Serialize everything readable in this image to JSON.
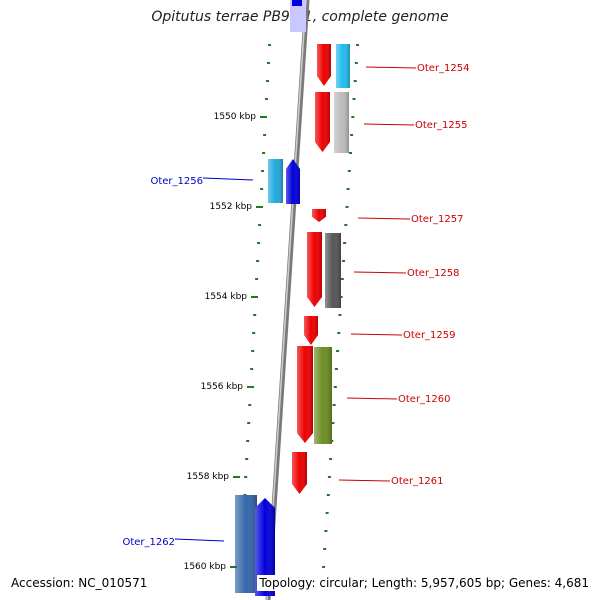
{
  "title": "Opitutus terrae PB90-1, complete genome",
  "footer": {
    "accession": "Accession: NC_010571",
    "topology": "Topology: circular; Length: 5,957,605 bp; Genes: 4,681"
  },
  "colors": {
    "backbone": "#7a7a7a",
    "tick": "#1f7a1f",
    "forward_label": "#cc0000",
    "reverse_label": "#0000cc"
  },
  "scale_labels": [
    "1550 kbp",
    "1552 kbp",
    "1554 kbp",
    "1556 kbp",
    "1558 kbp",
    "1560 kbp"
  ],
  "genes": [
    {
      "id": "Oter_1254",
      "strand": "forward",
      "colors": [
        "#ee0000",
        "#22bbee"
      ]
    },
    {
      "id": "Oter_1255",
      "strand": "forward",
      "colors": [
        "#ee0000",
        "#bbbbbb"
      ]
    },
    {
      "id": "Oter_1256",
      "strand": "reverse",
      "colors": [
        "#22aadd",
        "#0000dd"
      ]
    },
    {
      "id": "Oter_1257",
      "strand": "forward",
      "colors": [
        "#ee0000"
      ]
    },
    {
      "id": "Oter_1258",
      "strand": "forward",
      "colors": [
        "#ee0000",
        "#555555"
      ]
    },
    {
      "id": "Oter_1259",
      "strand": "forward",
      "colors": [
        "#ee0000"
      ]
    },
    {
      "id": "Oter_1260",
      "strand": "forward",
      "colors": [
        "#ee0000",
        "#6b8e23"
      ]
    },
    {
      "id": "Oter_1261",
      "strand": "forward",
      "colors": [
        "#ee0000"
      ]
    },
    {
      "id": "Oter_1262",
      "strand": "reverse",
      "colors": [
        "#3366aa",
        "#0000dd"
      ]
    }
  ]
}
